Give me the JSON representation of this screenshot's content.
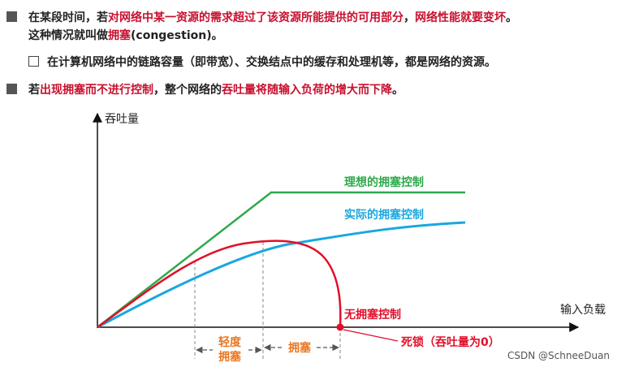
{
  "bullets": {
    "b1": {
      "p1": "在某段时间，若",
      "p2": "对网络中某一资源的需求超过了该资源所能提供的可用部分",
      "p3": "，",
      "p4": "网络性能就要变坏",
      "p5": "。",
      "p6": "这种情况就叫做",
      "p7": "拥塞",
      "p8": "(congestion)。"
    },
    "b2": {
      "text": "在计算机网络中的链路容量（即带宽）、交换结点中的缓存和处理机等，都是网络的资源。"
    },
    "b3": {
      "p1": "若",
      "p2": "出现拥塞而不进行控制",
      "p3": "，整个网络的",
      "p4": "吞吐量将随输入负荷的增大而下降",
      "p5": "。"
    }
  },
  "diagram": {
    "y_axis_label": "吞吐量",
    "x_axis_label": "输入负载",
    "curves": {
      "ideal": "理想的拥塞控制",
      "actual": "实际的拥塞控制",
      "none": "无拥塞控制"
    },
    "deadlock_label": "死锁（吞吐量为0）",
    "regions": {
      "light_line1": "轻度",
      "light_line2": "拥塞",
      "congestion": "拥塞"
    },
    "colors": {
      "ideal": "#2daa4a",
      "actual": "#1aa7de",
      "none": "#e0102a",
      "light": "#e87722"
    }
  },
  "credit": "CSDN @SchneeDuan"
}
